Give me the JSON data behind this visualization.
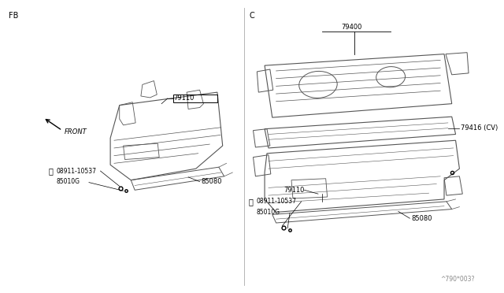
{
  "background_color": "#ffffff",
  "line_color": "#555555",
  "label_color": "#000000",
  "fig_width": 6.4,
  "fig_height": 3.72,
  "left_label": "FB",
  "right_label": "C",
  "watermark": "^790*003?"
}
